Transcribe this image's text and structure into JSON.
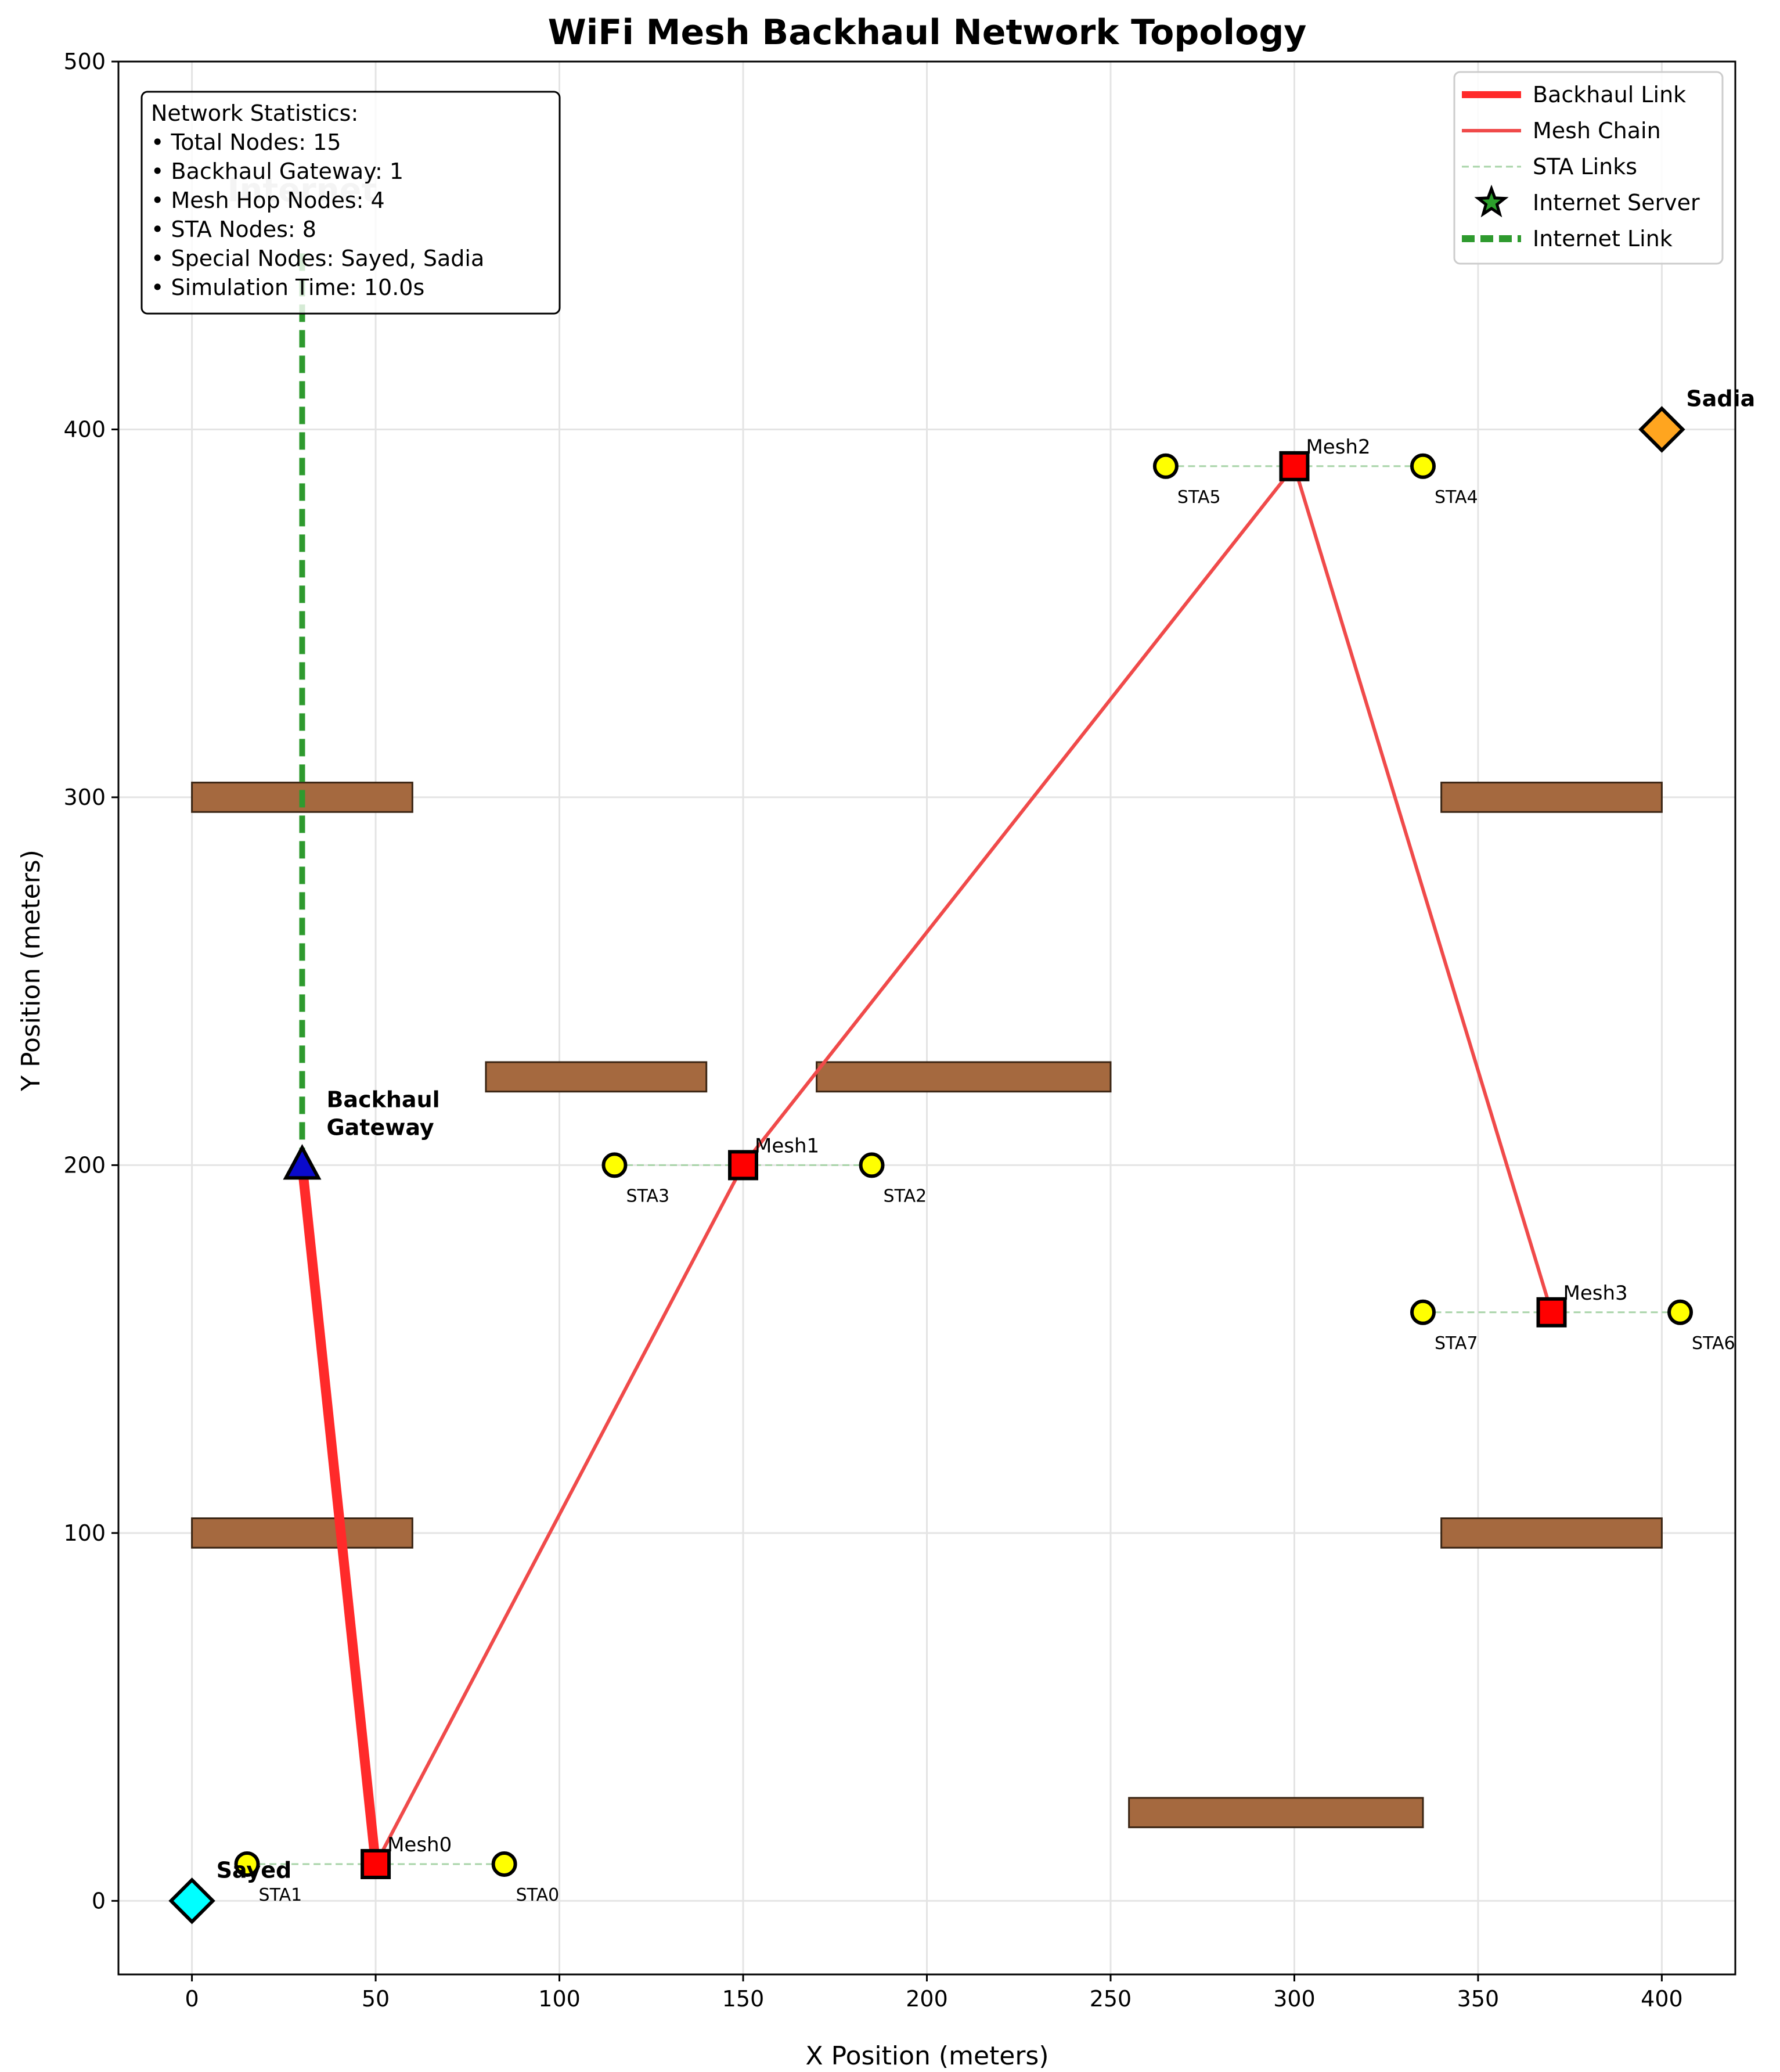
{
  "chart_data": {
    "type": "scatter",
    "title": "WiFi Mesh Backhaul Network Topology",
    "xlabel": "X Position (meters)",
    "ylabel": "Y Position (meters)",
    "xlim": [
      -20,
      420
    ],
    "ylim": [
      -20,
      500
    ],
    "xticks": [
      0,
      50,
      100,
      150,
      200,
      250,
      300,
      350,
      400
    ],
    "yticks": [
      0,
      100,
      200,
      300,
      400,
      500
    ],
    "grid": true,
    "legend_position": "top-right",
    "legend": [
      {
        "label": "Backhaul Link",
        "kind": "line",
        "color": "#ff2a2a",
        "width": "thick"
      },
      {
        "label": "Mesh Chain",
        "kind": "line",
        "color": "#f04a4a",
        "width": "normal"
      },
      {
        "label": "STA Links",
        "kind": "dashed",
        "color": "#a8d4a8",
        "width": "thin"
      },
      {
        "label": "Internet Server",
        "kind": "star",
        "color": "#2ca02c"
      },
      {
        "label": "Internet Link",
        "kind": "dashed",
        "color": "#2e9a2e",
        "width": "thick"
      }
    ],
    "stats_box": {
      "title": "Network Statistics:",
      "lines": [
        "• Total Nodes: 15",
        "• Backhaul Gateway: 1",
        "• Mesh Hop Nodes: 4",
        "• STA Nodes: 8",
        "• Special Nodes: Sayed, Sadia",
        "• Simulation Time: 10.0s"
      ]
    },
    "ghost_label": "Internet",
    "obstacles": [
      {
        "x1": 0,
        "x2": 60,
        "y": 300
      },
      {
        "x1": 80,
        "x2": 140,
        "y": 224
      },
      {
        "x1": 170,
        "x2": 250,
        "y": 224
      },
      {
        "x1": 340,
        "x2": 400,
        "y": 300
      },
      {
        "x1": 0,
        "x2": 60,
        "y": 100
      },
      {
        "x1": 340,
        "x2": 400,
        "y": 100
      },
      {
        "x1": 255,
        "x2": 335,
        "y": 24
      }
    ],
    "obstacle_color": "#a5693f",
    "gateway": {
      "label_lines": [
        "Backhaul",
        "Gateway"
      ],
      "x": 30,
      "y": 200,
      "color": "#0a0acc"
    },
    "internet_link": {
      "from": [
        30,
        200
      ],
      "to": [
        30,
        450
      ],
      "color": "#2e9a2e"
    },
    "mesh_nodes": [
      {
        "name": "Mesh0",
        "x": 50,
        "y": 10
      },
      {
        "name": "Mesh1",
        "x": 150,
        "y": 200
      },
      {
        "name": "Mesh2",
        "x": 300,
        "y": 390
      },
      {
        "name": "Mesh3",
        "x": 370,
        "y": 160
      }
    ],
    "mesh_color": "#ff0000",
    "sta_nodes": [
      {
        "name": "STA0",
        "x": 85,
        "y": 10,
        "mesh": 0
      },
      {
        "name": "STA1",
        "x": 15,
        "y": 10,
        "mesh": 0
      },
      {
        "name": "STA2",
        "x": 185,
        "y": 200,
        "mesh": 1
      },
      {
        "name": "STA3",
        "x": 115,
        "y": 200,
        "mesh": 1
      },
      {
        "name": "STA4",
        "x": 335,
        "y": 390,
        "mesh": 2
      },
      {
        "name": "STA5",
        "x": 265,
        "y": 390,
        "mesh": 2
      },
      {
        "name": "STA6",
        "x": 405,
        "y": 160,
        "mesh": 3
      },
      {
        "name": "STA7",
        "x": 335,
        "y": 160,
        "mesh": 3
      }
    ],
    "sta_color": "#ffff00",
    "special_nodes": [
      {
        "name": "Sayed",
        "x": 0,
        "y": 0,
        "color": "#00ffff"
      },
      {
        "name": "Sadia",
        "x": 400,
        "y": 400,
        "color": "#ffa51f"
      }
    ],
    "backhaul_link": {
      "from": [
        30,
        200
      ],
      "to": [
        50,
        10
      ]
    },
    "mesh_chain": [
      [
        50,
        10
      ],
      [
        150,
        200
      ],
      [
        300,
        390
      ],
      [
        370,
        160
      ]
    ]
  }
}
